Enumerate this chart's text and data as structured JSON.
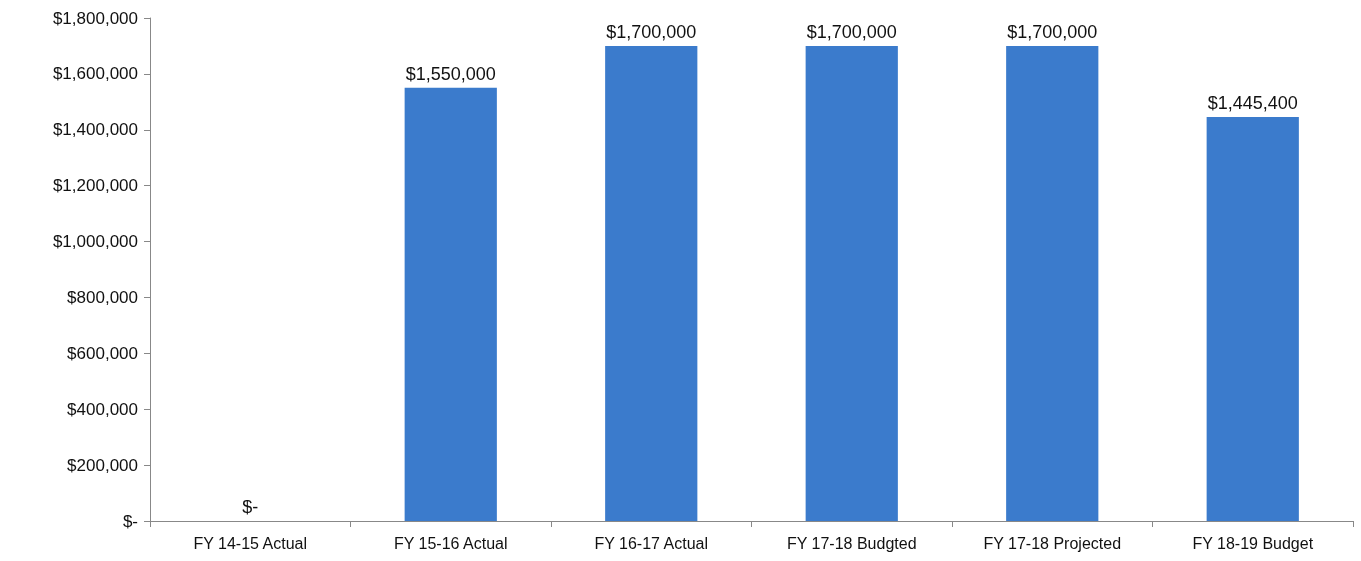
{
  "chart_data": {
    "type": "bar",
    "categories": [
      "FY 14-15 Actual",
      "FY 15-16 Actual",
      "FY 16-17 Actual",
      "FY 17-18 Budgted",
      "FY 17-18 Projected",
      "FY 18-19 Budget"
    ],
    "values": [
      0,
      1550000,
      1700000,
      1700000,
      1700000,
      1445400
    ],
    "value_labels": [
      "$-",
      "$1,550,000",
      "$1,700,000",
      "$1,700,000",
      "$1,700,000",
      "$1,445,400"
    ],
    "color": "#3b7bcc",
    "ylim": [
      0,
      1800000
    ],
    "yticks": [
      {
        "value": 0,
        "label": "$-"
      },
      {
        "value": 200000,
        "label": "$200,000"
      },
      {
        "value": 400000,
        "label": "$400,000"
      },
      {
        "value": 600000,
        "label": "$600,000"
      },
      {
        "value": 800000,
        "label": "$800,000"
      },
      {
        "value": 1000000,
        "label": "$1,000,000"
      },
      {
        "value": 1200000,
        "label": "$1,200,000"
      },
      {
        "value": 1400000,
        "label": "$1,400,000"
      },
      {
        "value": 1600000,
        "label": "$1,600,000"
      },
      {
        "value": 1800000,
        "label": "$1,800,000"
      }
    ],
    "grid": false
  }
}
